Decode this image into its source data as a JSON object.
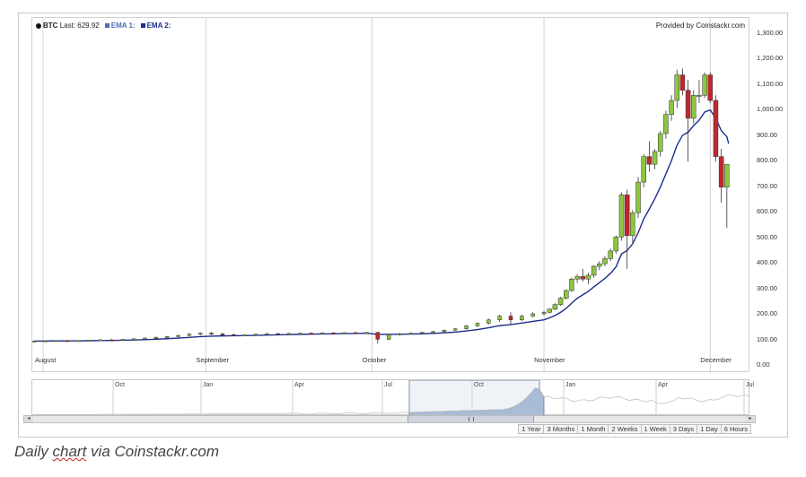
{
  "legend": {
    "symbol": "BTC",
    "last_label": "Last: 629.92",
    "ema1_label": "EMA 1:",
    "ema2_label": "EMA 2:",
    "ema1_color": "#4a6db5",
    "ema2_color": "#1c2d8c"
  },
  "provided_by": "Provided by Coinstackr.com",
  "colors": {
    "up": "#8cc63f",
    "down": "#c1272d",
    "grid": "#d4d4d4",
    "nav_fill": "#a9bcd6"
  },
  "navigator": {
    "labels": [
      "Oct",
      "Jan",
      "Apr",
      "Jul",
      "Oct",
      "Jan",
      "Apr",
      "Jul"
    ]
  },
  "scrollbar": {
    "left_arrow": "◂",
    "right_arrow": "▸"
  },
  "range_buttons": [
    "1 Year",
    "3 Months",
    "1 Month",
    "2 Weeks",
    "1 Week",
    "3 Days",
    "1 Day",
    "6 Hours"
  ],
  "caption": {
    "prefix": "Daily ",
    "underlined": "chart",
    "suffix": " via Coinstackr.com"
  },
  "chart_data": {
    "type": "candlestick",
    "xlabels": [
      "August",
      "September",
      "October",
      "November",
      "December"
    ],
    "ylim": [
      0,
      1300
    ],
    "yticks": [
      "0.00",
      "100.00",
      "200.00",
      "300.00",
      "400.00",
      "500.00",
      "600.00",
      "700.00",
      "800.00",
      "900.00",
      "1,000.00",
      "1,100.00",
      "1,200.00",
      "1,300.00"
    ],
    "x_start": "2013-08-01",
    "grid": true,
    "candles": [
      {
        "date": "2013-08-01",
        "o": 95,
        "h": 99,
        "l": 92,
        "c": 97
      },
      {
        "date": "2013-08-03",
        "o": 97,
        "h": 100,
        "l": 94,
        "c": 98
      },
      {
        "date": "2013-08-05",
        "o": 98,
        "h": 101,
        "l": 95,
        "c": 99
      },
      {
        "date": "2013-08-07",
        "o": 99,
        "h": 102,
        "l": 96,
        "c": 98
      },
      {
        "date": "2013-08-09",
        "o": 98,
        "h": 101,
        "l": 95,
        "c": 99
      },
      {
        "date": "2013-08-11",
        "o": 99,
        "h": 102,
        "l": 97,
        "c": 101
      },
      {
        "date": "2013-08-13",
        "o": 101,
        "h": 104,
        "l": 98,
        "c": 102
      },
      {
        "date": "2013-08-15",
        "o": 102,
        "h": 105,
        "l": 99,
        "c": 101
      },
      {
        "date": "2013-08-17",
        "o": 101,
        "h": 105,
        "l": 99,
        "c": 104
      },
      {
        "date": "2013-08-19",
        "o": 104,
        "h": 108,
        "l": 101,
        "c": 106
      },
      {
        "date": "2013-08-21",
        "o": 106,
        "h": 111,
        "l": 104,
        "c": 109
      },
      {
        "date": "2013-08-23",
        "o": 109,
        "h": 114,
        "l": 106,
        "c": 112
      },
      {
        "date": "2013-08-25",
        "o": 112,
        "h": 117,
        "l": 109,
        "c": 115
      },
      {
        "date": "2013-08-27",
        "o": 115,
        "h": 122,
        "l": 112,
        "c": 119
      },
      {
        "date": "2013-08-29",
        "o": 119,
        "h": 128,
        "l": 116,
        "c": 124
      },
      {
        "date": "2013-08-31",
        "o": 124,
        "h": 131,
        "l": 119,
        "c": 128
      },
      {
        "date": "2013-09-02",
        "o": 128,
        "h": 132,
        "l": 121,
        "c": 125
      },
      {
        "date": "2013-09-04",
        "o": 125,
        "h": 129,
        "l": 118,
        "c": 122
      },
      {
        "date": "2013-09-06",
        "o": 122,
        "h": 126,
        "l": 116,
        "c": 120
      },
      {
        "date": "2013-09-08",
        "o": 120,
        "h": 124,
        "l": 117,
        "c": 121
      },
      {
        "date": "2013-09-10",
        "o": 121,
        "h": 126,
        "l": 118,
        "c": 124
      },
      {
        "date": "2013-09-12",
        "o": 124,
        "h": 128,
        "l": 120,
        "c": 126
      },
      {
        "date": "2013-09-14",
        "o": 126,
        "h": 129,
        "l": 122,
        "c": 125
      },
      {
        "date": "2013-09-16",
        "o": 125,
        "h": 129,
        "l": 122,
        "c": 127
      },
      {
        "date": "2013-09-18",
        "o": 127,
        "h": 130,
        "l": 124,
        "c": 128
      },
      {
        "date": "2013-09-20",
        "o": 128,
        "h": 131,
        "l": 125,
        "c": 127
      },
      {
        "date": "2013-09-22",
        "o": 127,
        "h": 131,
        "l": 124,
        "c": 129
      },
      {
        "date": "2013-09-24",
        "o": 129,
        "h": 132,
        "l": 126,
        "c": 128
      },
      {
        "date": "2013-09-26",
        "o": 128,
        "h": 132,
        "l": 125,
        "c": 130
      },
      {
        "date": "2013-09-28",
        "o": 130,
        "h": 133,
        "l": 127,
        "c": 129
      },
      {
        "date": "2013-09-30",
        "o": 129,
        "h": 133,
        "l": 126,
        "c": 131
      },
      {
        "date": "2013-10-02",
        "o": 131,
        "h": 134,
        "l": 88,
        "c": 104
      },
      {
        "date": "2013-10-04",
        "o": 104,
        "h": 126,
        "l": 100,
        "c": 122
      },
      {
        "date": "2013-10-06",
        "o": 122,
        "h": 130,
        "l": 118,
        "c": 126
      },
      {
        "date": "2013-10-08",
        "o": 126,
        "h": 131,
        "l": 122,
        "c": 128
      },
      {
        "date": "2013-10-10",
        "o": 128,
        "h": 134,
        "l": 125,
        "c": 131
      },
      {
        "date": "2013-10-12",
        "o": 131,
        "h": 137,
        "l": 128,
        "c": 134
      },
      {
        "date": "2013-10-14",
        "o": 134,
        "h": 142,
        "l": 131,
        "c": 140
      },
      {
        "date": "2013-10-16",
        "o": 140,
        "h": 148,
        "l": 137,
        "c": 145
      },
      {
        "date": "2013-10-18",
        "o": 145,
        "h": 160,
        "l": 142,
        "c": 157
      },
      {
        "date": "2013-10-20",
        "o": 157,
        "h": 170,
        "l": 152,
        "c": 167
      },
      {
        "date": "2013-10-22",
        "o": 167,
        "h": 185,
        "l": 162,
        "c": 180
      },
      {
        "date": "2013-10-24",
        "o": 180,
        "h": 200,
        "l": 172,
        "c": 195
      },
      {
        "date": "2013-10-26",
        "o": 195,
        "h": 210,
        "l": 160,
        "c": 180
      },
      {
        "date": "2013-10-28",
        "o": 180,
        "h": 200,
        "l": 175,
        "c": 195
      },
      {
        "date": "2013-10-30",
        "o": 195,
        "h": 210,
        "l": 190,
        "c": 204
      },
      {
        "date": "2013-11-01",
        "o": 204,
        "h": 215,
        "l": 198,
        "c": 210
      },
      {
        "date": "2013-11-02",
        "o": 210,
        "h": 225,
        "l": 205,
        "c": 222
      },
      {
        "date": "2013-11-03",
        "o": 222,
        "h": 245,
        "l": 218,
        "c": 240
      },
      {
        "date": "2013-11-04",
        "o": 240,
        "h": 270,
        "l": 235,
        "c": 265
      },
      {
        "date": "2013-11-05",
        "o": 265,
        "h": 300,
        "l": 260,
        "c": 295
      },
      {
        "date": "2013-11-06",
        "o": 295,
        "h": 345,
        "l": 290,
        "c": 340
      },
      {
        "date": "2013-11-07",
        "o": 340,
        "h": 360,
        "l": 325,
        "c": 350
      },
      {
        "date": "2013-11-08",
        "o": 350,
        "h": 380,
        "l": 330,
        "c": 340
      },
      {
        "date": "2013-11-09",
        "o": 340,
        "h": 365,
        "l": 320,
        "c": 355
      },
      {
        "date": "2013-11-10",
        "o": 355,
        "h": 395,
        "l": 345,
        "c": 390
      },
      {
        "date": "2013-11-11",
        "o": 390,
        "h": 410,
        "l": 375,
        "c": 400
      },
      {
        "date": "2013-11-12",
        "o": 400,
        "h": 430,
        "l": 390,
        "c": 420
      },
      {
        "date": "2013-11-13",
        "o": 420,
        "h": 460,
        "l": 410,
        "c": 450
      },
      {
        "date": "2013-11-14",
        "o": 450,
        "h": 510,
        "l": 440,
        "c": 505
      },
      {
        "date": "2013-11-15",
        "o": 505,
        "h": 680,
        "l": 490,
        "c": 670
      },
      {
        "date": "2013-11-16",
        "o": 670,
        "h": 690,
        "l": 380,
        "c": 510
      },
      {
        "date": "2013-11-17",
        "o": 510,
        "h": 610,
        "l": 480,
        "c": 600
      },
      {
        "date": "2013-11-18",
        "o": 600,
        "h": 740,
        "l": 580,
        "c": 720
      },
      {
        "date": "2013-11-19",
        "o": 720,
        "h": 830,
        "l": 700,
        "c": 820
      },
      {
        "date": "2013-11-20",
        "o": 820,
        "h": 880,
        "l": 760,
        "c": 790
      },
      {
        "date": "2013-11-21",
        "o": 790,
        "h": 850,
        "l": 770,
        "c": 840
      },
      {
        "date": "2013-11-22",
        "o": 840,
        "h": 920,
        "l": 820,
        "c": 910
      },
      {
        "date": "2013-11-23",
        "o": 910,
        "h": 1000,
        "l": 890,
        "c": 985
      },
      {
        "date": "2013-11-24",
        "o": 985,
        "h": 1060,
        "l": 960,
        "c": 1040
      },
      {
        "date": "2013-11-25",
        "o": 1040,
        "h": 1160,
        "l": 1010,
        "c": 1140
      },
      {
        "date": "2013-11-26",
        "o": 1140,
        "h": 1165,
        "l": 1060,
        "c": 1080
      },
      {
        "date": "2013-11-27",
        "o": 1080,
        "h": 1120,
        "l": 800,
        "c": 970
      },
      {
        "date": "2013-11-28",
        "o": 970,
        "h": 1080,
        "l": 950,
        "c": 1060
      },
      {
        "date": "2013-11-29",
        "o": 1060,
        "h": 1120,
        "l": 1030,
        "c": 1060
      },
      {
        "date": "2013-11-30",
        "o": 1060,
        "h": 1150,
        "l": 1050,
        "c": 1140
      },
      {
        "date": "2013-12-01",
        "o": 1140,
        "h": 1150,
        "l": 1030,
        "c": 1040
      },
      {
        "date": "2013-12-02",
        "o": 1040,
        "h": 1060,
        "l": 800,
        "c": 820
      },
      {
        "date": "2013-12-03",
        "o": 820,
        "h": 850,
        "l": 640,
        "c": 700
      },
      {
        "date": "2013-12-04",
        "o": 700,
        "h": 790,
        "l": 540,
        "c": 790
      }
    ]
  }
}
